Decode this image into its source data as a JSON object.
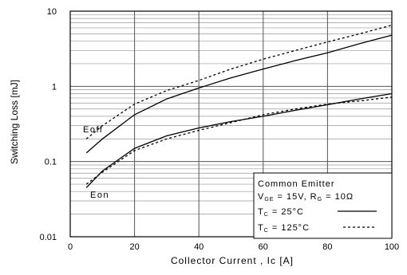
{
  "chart_data": {
    "type": "line",
    "xlabel": "Collector Current , Ic [A]",
    "ylabel": "Switching Loss [mJ]",
    "xlim": [
      0,
      100
    ],
    "ylim": [
      0.01,
      10
    ],
    "y_scale": "log",
    "grid": true,
    "x_ticks": [
      "0",
      "20",
      "40",
      "60",
      "80",
      "100"
    ],
    "y_ticks": [
      "0.01",
      "0.1",
      "1",
      "10"
    ],
    "series": [
      {
        "name": "Eoff",
        "condition": "TC = 25°C",
        "style": "solid",
        "x": [
          5,
          10,
          20,
          30,
          40,
          50,
          60,
          70,
          80,
          90,
          100
        ],
        "y": [
          0.13,
          0.2,
          0.42,
          0.68,
          0.95,
          1.3,
          1.7,
          2.2,
          2.8,
          3.7,
          4.8
        ]
      },
      {
        "name": "Eoff",
        "condition": "TC = 125°C",
        "style": "dashed",
        "x": [
          5,
          10,
          20,
          30,
          40,
          50,
          60,
          70,
          80,
          90,
          100
        ],
        "y": [
          0.2,
          0.3,
          0.58,
          0.88,
          1.2,
          1.7,
          2.3,
          3.0,
          3.9,
          5.0,
          6.5
        ]
      },
      {
        "name": "Eon",
        "condition": "TC = 25°C",
        "style": "solid",
        "x": [
          5,
          10,
          20,
          30,
          40,
          50,
          60,
          70,
          80,
          90,
          100
        ],
        "y": [
          0.045,
          0.075,
          0.15,
          0.22,
          0.28,
          0.34,
          0.4,
          0.48,
          0.57,
          0.68,
          0.8
        ]
      },
      {
        "name": "Eon",
        "condition": "TC = 125°C",
        "style": "dashed",
        "x": [
          5,
          10,
          20,
          30,
          40,
          50,
          60,
          70,
          80,
          90,
          100
        ],
        "y": [
          0.05,
          0.072,
          0.14,
          0.2,
          0.26,
          0.33,
          0.42,
          0.5,
          0.58,
          0.64,
          0.72
        ]
      }
    ],
    "annotations": {
      "eoff": "Eoff",
      "eon": "Eon"
    },
    "legend": {
      "title": "Common Emitter",
      "cond_v": "V",
      "cond_v_sub": "GE",
      "cond_v_val": " = 15V, R",
      "cond_r_sub": "G",
      "cond_r_val": " = 10Ω",
      "t1": "T",
      "t1_sub": "C",
      "t1_val": " = 25°C",
      "t2": "T",
      "t2_sub": "C",
      "t2_val": " = 125°C",
      "placement": "bottom-right"
    }
  }
}
